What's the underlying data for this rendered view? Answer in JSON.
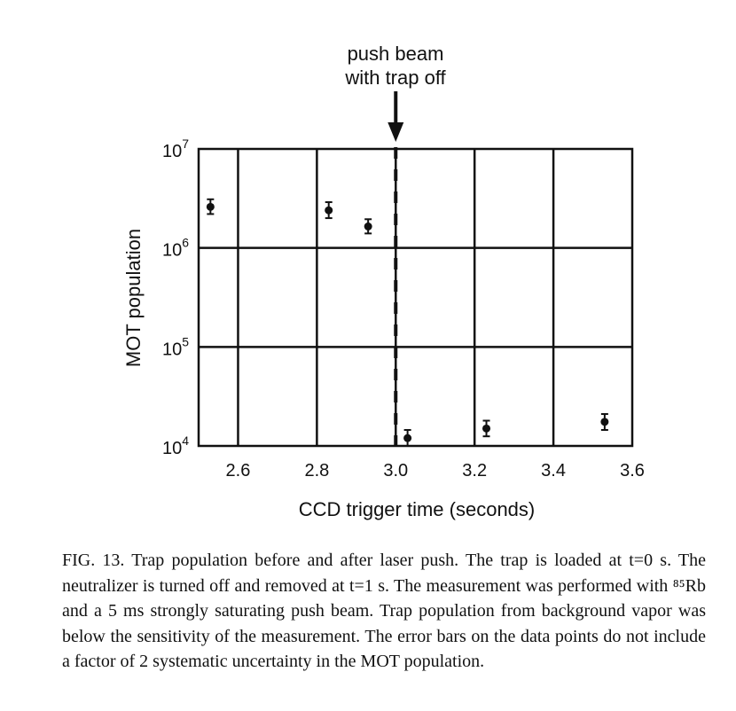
{
  "chart_data": {
    "type": "scatter",
    "xlabel": "CCD trigger time (seconds)",
    "ylabel": "MOT population",
    "xlim": [
      2.5,
      3.6
    ],
    "ylim": [
      10000,
      10000000
    ],
    "y_scale": "log",
    "grid": true,
    "x_ticks": [
      "2.6",
      "2.8",
      "3.0",
      "3.2",
      "3.4",
      "3.6"
    ],
    "x_tick_values": [
      2.6,
      2.8,
      3.0,
      3.2,
      3.4,
      3.6
    ],
    "y_ticks": [
      {
        "base": "10",
        "exp": "4",
        "value": 10000
      },
      {
        "base": "10",
        "exp": "5",
        "value": 100000
      },
      {
        "base": "10",
        "exp": "6",
        "value": 1000000
      },
      {
        "base": "10",
        "exp": "7",
        "value": 10000000
      }
    ],
    "points": [
      {
        "x": 2.53,
        "y": 2600000,
        "y_low": 2200000,
        "y_high": 3100000
      },
      {
        "x": 2.83,
        "y": 2400000,
        "y_low": 2000000,
        "y_high": 2900000
      },
      {
        "x": 2.93,
        "y": 1650000,
        "y_low": 1400000,
        "y_high": 1950000
      },
      {
        "x": 3.03,
        "y": 12000,
        "y_low": 10000,
        "y_high": 14500
      },
      {
        "x": 3.23,
        "y": 15000,
        "y_low": 12500,
        "y_high": 18000
      },
      {
        "x": 3.53,
        "y": 17500,
        "y_low": 14500,
        "y_high": 21000
      }
    ],
    "marker_line": {
      "x": 3.0
    },
    "annotation": {
      "lines": [
        "push beam",
        "with trap off"
      ]
    }
  },
  "caption": {
    "paragraph": "FIG. 13. Trap population before and after laser push. The trap is loaded at t=0 s. The neutralizer is turned off and removed at t=1 s. The measurement was performed with ⁸⁵Rb and a 5 ms strongly saturating push beam. Trap population from background vapor was below the sensitivity of the measurement. The error bars on the data points do not include a factor of 2 systematic uncertainty in the MOT population."
  }
}
